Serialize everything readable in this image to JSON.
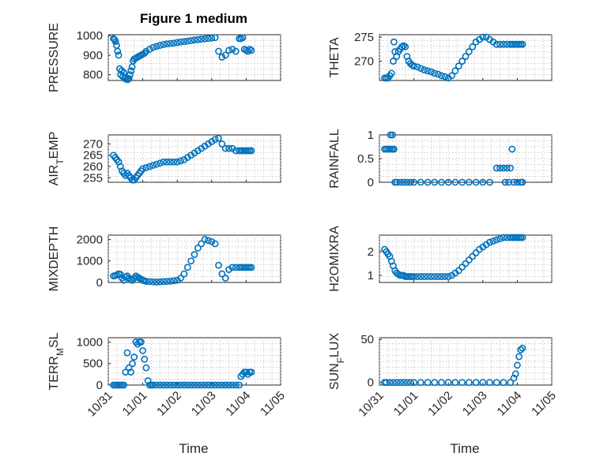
{
  "figure": {
    "title": "Figure 1 medium",
    "xlabel": "Time",
    "marker_color": "#0072bd"
  },
  "chart_data": [
    {
      "type": "scatter",
      "ylabel": "PRESSURE",
      "ylim": [
        770,
        1005
      ],
      "yticks": [
        800,
        900,
        1000
      ],
      "xlim": [
        "10/31",
        "11/05"
      ],
      "xticks": [
        "10/31",
        "11/01",
        "11/02",
        "11/03",
        "11/04",
        "11/05"
      ],
      "x": [
        0.15,
        0.18,
        0.21,
        0.24,
        0.27,
        0.3,
        0.33,
        0.36,
        0.39,
        0.42,
        0.45,
        0.48,
        0.51,
        0.54,
        0.57,
        0.6,
        0.63,
        0.66,
        0.69,
        0.72,
        0.75,
        0.8,
        0.85,
        0.9,
        0.95,
        1.0,
        1.05,
        1.1,
        1.2,
        1.3,
        1.4,
        1.5,
        1.6,
        1.7,
        1.8,
        1.9,
        2.0,
        2.1,
        2.2,
        2.3,
        2.4,
        2.5,
        2.6,
        2.7,
        2.8,
        2.9,
        3.0,
        3.1,
        3.2,
        3.3,
        3.4,
        3.5,
        3.6,
        3.7,
        3.8,
        3.85,
        3.9,
        3.95,
        4.0,
        4.05,
        4.1,
        4.15
      ],
      "y": [
        985,
        980,
        970,
        950,
        920,
        900,
        830,
        800,
        820,
        790,
        810,
        780,
        785,
        775,
        775,
        780,
        800,
        820,
        840,
        870,
        880,
        885,
        890,
        895,
        900,
        905,
        910,
        920,
        930,
        940,
        945,
        950,
        955,
        958,
        960,
        962,
        965,
        968,
        970,
        972,
        975,
        978,
        980,
        982,
        984,
        986,
        988,
        990,
        920,
        890,
        900,
        925,
        930,
        920,
        985,
        985,
        990,
        930,
        925,
        920,
        930,
        925
      ]
    },
    {
      "type": "scatter",
      "ylabel": "THETA",
      "ylim": [
        266,
        275.5
      ],
      "yticks": [
        270,
        275
      ],
      "xlim": [
        "10/31",
        "11/05"
      ],
      "xticks": [
        "10/31",
        "11/01",
        "11/02",
        "11/03",
        "11/04",
        "11/05"
      ],
      "x": [
        0.15,
        0.2,
        0.25,
        0.3,
        0.35,
        0.4,
        0.42,
        0.45,
        0.5,
        0.55,
        0.6,
        0.65,
        0.7,
        0.75,
        0.8,
        0.85,
        0.9,
        0.95,
        1.0,
        1.1,
        1.2,
        1.3,
        1.4,
        1.5,
        1.6,
        1.7,
        1.8,
        1.9,
        2.0,
        2.1,
        2.2,
        2.3,
        2.4,
        2.5,
        2.6,
        2.7,
        2.8,
        2.9,
        3.0,
        3.1,
        3.2,
        3.3,
        3.4,
        3.5,
        3.6,
        3.7,
        3.8,
        3.85,
        3.9,
        3.95,
        4.0,
        4.05,
        4.1,
        4.15
      ],
      "y": [
        266.5,
        266.5,
        266.5,
        267,
        267.5,
        270,
        274,
        272,
        271,
        272,
        272.5,
        273,
        273.2,
        273,
        271,
        270,
        269.5,
        269.2,
        269,
        268.8,
        268.5,
        268.2,
        268,
        267.8,
        267.5,
        267.3,
        267,
        266.8,
        266.5,
        267,
        268,
        269,
        270,
        271,
        272,
        273,
        274,
        274.5,
        275,
        275,
        274.5,
        274,
        273.5,
        273.5,
        273.5,
        273.5,
        273.5,
        273.5,
        273.5,
        273.5,
        273.5,
        273.5,
        273.5,
        273.5
      ]
    },
    {
      "type": "scatter",
      "ylabel": "AIR_TEMP",
      "ylim": [
        253,
        274
      ],
      "yticks": [
        255,
        260,
        265,
        270
      ],
      "xlim": [
        "10/31",
        "11/05"
      ],
      "xticks": [
        "10/31",
        "11/01",
        "11/02",
        "11/03",
        "11/04",
        "11/05"
      ],
      "x": [
        0.15,
        0.2,
        0.25,
        0.3,
        0.35,
        0.4,
        0.45,
        0.5,
        0.55,
        0.6,
        0.65,
        0.7,
        0.75,
        0.8,
        0.85,
        0.9,
        0.95,
        1.0,
        1.1,
        1.2,
        1.3,
        1.4,
        1.5,
        1.6,
        1.7,
        1.8,
        1.9,
        2.0,
        2.1,
        2.2,
        2.3,
        2.4,
        2.5,
        2.6,
        2.7,
        2.8,
        2.9,
        3.0,
        3.1,
        3.2,
        3.3,
        3.4,
        3.5,
        3.6,
        3.7,
        3.8,
        3.85,
        3.9,
        3.95,
        4.0,
        4.05,
        4.1,
        4.15
      ],
      "y": [
        265,
        264,
        263,
        262,
        260,
        258,
        257,
        256,
        257,
        256,
        255,
        254,
        254,
        255,
        256,
        257,
        258,
        259,
        259.5,
        260,
        260.5,
        261,
        261.5,
        262,
        262,
        262,
        262,
        262,
        262.5,
        263,
        264,
        265,
        266,
        267,
        268,
        269,
        270,
        271,
        272,
        272.5,
        270,
        268,
        268,
        268,
        267,
        267,
        267,
        267,
        267,
        267,
        267,
        267,
        267
      ]
    },
    {
      "type": "scatter",
      "ylabel": "RAINFALL",
      "ylim": [
        0,
        1
      ],
      "yticks": [
        0,
        0.5,
        1
      ],
      "xlim": [
        "10/31",
        "11/05"
      ],
      "xticks": [
        "10/31",
        "11/01",
        "11/02",
        "11/03",
        "11/04",
        "11/05"
      ],
      "x": [
        0.15,
        0.2,
        0.25,
        0.3,
        0.32,
        0.35,
        0.38,
        0.4,
        0.42,
        0.45,
        0.5,
        0.6,
        0.7,
        0.8,
        0.9,
        1.0,
        1.2,
        1.4,
        1.6,
        1.8,
        2.0,
        2.2,
        2.4,
        2.6,
        2.8,
        3.0,
        3.2,
        3.4,
        3.5,
        3.6,
        3.65,
        3.7,
        3.75,
        3.8,
        3.85,
        3.9,
        4.0,
        4.1,
        4.15
      ],
      "y": [
        0.7,
        0.7,
        0.7,
        0.7,
        1,
        0.7,
        1,
        0.7,
        0.7,
        0,
        0,
        0,
        0,
        0,
        0,
        0,
        0,
        0,
        0,
        0,
        0,
        0,
        0,
        0,
        0,
        0,
        0,
        0.3,
        0.3,
        0.3,
        0,
        0.3,
        0,
        0.3,
        0.7,
        0,
        0,
        0,
        0
      ]
    },
    {
      "type": "scatter",
      "ylabel": "MIXDEPTH",
      "ylim": [
        0,
        2200
      ],
      "yticks": [
        0,
        1000,
        2000
      ],
      "xlim": [
        "10/31",
        "11/05"
      ],
      "xticks": [
        "10/31",
        "11/01",
        "11/02",
        "11/03",
        "11/04",
        "11/05"
      ],
      "x": [
        0.15,
        0.2,
        0.25,
        0.3,
        0.35,
        0.4,
        0.45,
        0.5,
        0.55,
        0.6,
        0.65,
        0.7,
        0.75,
        0.8,
        0.85,
        0.9,
        0.95,
        1.0,
        1.05,
        1.1,
        1.2,
        1.3,
        1.4,
        1.5,
        1.6,
        1.7,
        1.8,
        1.9,
        2.0,
        2.1,
        2.2,
        2.3,
        2.4,
        2.5,
        2.6,
        2.7,
        2.8,
        2.9,
        3.0,
        3.1,
        3.2,
        3.3,
        3.4,
        3.5,
        3.6,
        3.7,
        3.8,
        3.85,
        3.9,
        3.95,
        4.0,
        4.05,
        4.1,
        4.15
      ],
      "y": [
        300,
        320,
        350,
        400,
        380,
        200,
        100,
        250,
        300,
        200,
        150,
        100,
        200,
        300,
        250,
        200,
        150,
        100,
        80,
        50,
        40,
        30,
        20,
        30,
        40,
        50,
        60,
        80,
        100,
        200,
        400,
        700,
        1000,
        1300,
        1600,
        1800,
        2000,
        1950,
        1900,
        1800,
        800,
        400,
        200,
        600,
        700,
        700,
        700,
        700,
        700,
        700,
        700,
        700,
        700,
        700
      ]
    },
    {
      "type": "scatter",
      "ylabel": "H2OMIXRA",
      "ylim": [
        0.7,
        2.7
      ],
      "yticks": [
        1,
        2
      ],
      "xlim": [
        "10/31",
        "11/05"
      ],
      "xticks": [
        "10/31",
        "11/01",
        "11/02",
        "11/03",
        "11/04",
        "11/05"
      ],
      "x": [
        0.15,
        0.2,
        0.25,
        0.3,
        0.35,
        0.4,
        0.45,
        0.5,
        0.55,
        0.6,
        0.65,
        0.7,
        0.75,
        0.8,
        0.85,
        0.9,
        0.95,
        1.0,
        1.1,
        1.2,
        1.3,
        1.4,
        1.5,
        1.6,
        1.7,
        1.8,
        1.9,
        2.0,
        2.1,
        2.2,
        2.3,
        2.4,
        2.5,
        2.6,
        2.7,
        2.8,
        2.9,
        3.0,
        3.1,
        3.2,
        3.3,
        3.4,
        3.5,
        3.6,
        3.7,
        3.8,
        3.85,
        3.9,
        3.95,
        4.0,
        4.05,
        4.1,
        4.15
      ],
      "y": [
        2.1,
        2.0,
        1.9,
        1.8,
        1.6,
        1.4,
        1.2,
        1.1,
        1.05,
        1.0,
        1.0,
        1.0,
        0.95,
        0.95,
        0.95,
        0.95,
        0.95,
        0.95,
        0.95,
        0.95,
        0.95,
        0.95,
        0.95,
        0.95,
        0.95,
        0.95,
        0.95,
        0.95,
        1.0,
        1.1,
        1.2,
        1.35,
        1.5,
        1.65,
        1.8,
        1.95,
        2.1,
        2.2,
        2.3,
        2.4,
        2.45,
        2.5,
        2.55,
        2.6,
        2.6,
        2.6,
        2.6,
        2.6,
        2.6,
        2.6,
        2.6,
        2.6,
        2.6
      ]
    },
    {
      "type": "scatter",
      "ylabel": "TERR_MSL",
      "ylim": [
        0,
        1100
      ],
      "yticks": [
        0,
        500,
        1000
      ],
      "xlim": [
        "10/31",
        "11/05"
      ],
      "xticks": [
        "10/31",
        "11/01",
        "11/02",
        "11/03",
        "11/04",
        "11/05"
      ],
      "x": [
        0.15,
        0.2,
        0.25,
        0.3,
        0.35,
        0.4,
        0.45,
        0.5,
        0.55,
        0.6,
        0.65,
        0.7,
        0.75,
        0.8,
        0.85,
        0.9,
        0.95,
        1.0,
        1.05,
        1.1,
        1.15,
        1.2,
        1.25,
        1.3,
        1.4,
        1.5,
        1.6,
        1.7,
        1.8,
        1.9,
        2.0,
        2.1,
        2.2,
        2.3,
        2.4,
        2.5,
        2.6,
        2.7,
        2.8,
        2.9,
        3.0,
        3.1,
        3.2,
        3.3,
        3.4,
        3.5,
        3.6,
        3.7,
        3.8,
        3.85,
        3.9,
        3.95,
        4.0,
        4.05,
        4.1,
        4.15
      ],
      "y": [
        0,
        0,
        0,
        0,
        0,
        0,
        0,
        300,
        750,
        400,
        300,
        500,
        650,
        1000,
        950,
        1000,
        1000,
        800,
        600,
        400,
        100,
        0,
        0,
        0,
        0,
        0,
        0,
        0,
        0,
        0,
        0,
        0,
        0,
        0,
        0,
        0,
        0,
        0,
        0,
        0,
        0,
        0,
        0,
        0,
        0,
        0,
        0,
        0,
        0,
        200,
        250,
        300,
        300,
        250,
        300,
        300
      ]
    },
    {
      "type": "scatter",
      "ylabel": "SUN_FLUX",
      "ylim": [
        -3,
        52
      ],
      "yticks": [
        0,
        50
      ],
      "xlim": [
        "10/31",
        "11/05"
      ],
      "xticks": [
        "10/31",
        "11/01",
        "11/02",
        "11/03",
        "11/04",
        "11/05"
      ],
      "x": [
        0.15,
        0.2,
        0.3,
        0.4,
        0.5,
        0.6,
        0.7,
        0.8,
        0.9,
        1.0,
        1.2,
        1.4,
        1.6,
        1.8,
        2.0,
        2.2,
        2.4,
        2.6,
        2.8,
        3.0,
        3.2,
        3.4,
        3.6,
        3.8,
        3.9,
        3.95,
        4.0,
        4.05,
        4.1,
        4.15
      ],
      "y": [
        0,
        0,
        0,
        0,
        0,
        0,
        0,
        0,
        0,
        0,
        0,
        0,
        0,
        0,
        0,
        0,
        0,
        0,
        0,
        0,
        0,
        0,
        0,
        0,
        5,
        10,
        20,
        30,
        38,
        40
      ]
    }
  ]
}
